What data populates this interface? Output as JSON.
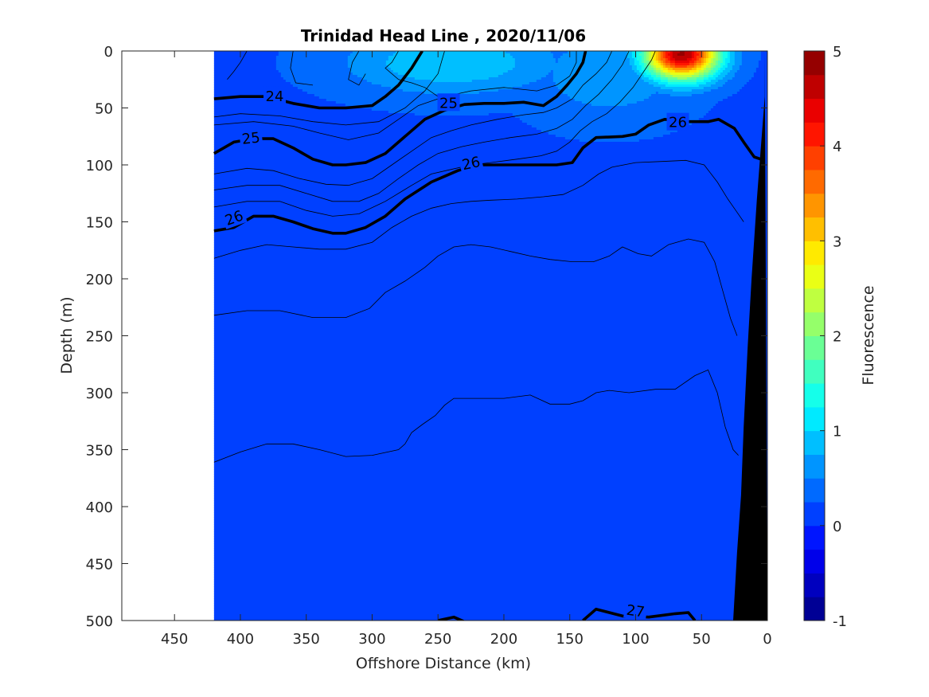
{
  "chart_data": {
    "type": "heatmap",
    "title": "Trinidad Head Line , 2020/11/06",
    "xlabel": "Offshore Distance (km)",
    "ylabel": "Depth (m)",
    "colorbar_label": "Fluorescence",
    "xlim": [
      490,
      0
    ],
    "ylim": [
      500,
      0
    ],
    "x_reversed": true,
    "y_reversed": true,
    "xticks": [
      450,
      400,
      350,
      300,
      250,
      200,
      150,
      100,
      50,
      0
    ],
    "yticks": [
      0,
      50,
      100,
      150,
      200,
      250,
      300,
      350,
      400,
      450,
      500
    ],
    "colorbar_range": [
      -1,
      5
    ],
    "colorbar_ticks": [
      5,
      4,
      3,
      2,
      1,
      0,
      -1
    ],
    "colormap": "jet",
    "colorbar_levels": 24,
    "background_fluorescence": 0.2,
    "data_coverage_x": [
      0,
      420
    ],
    "bathymetry_color": "#000000",
    "fluorescence_features": [
      {
        "x_center": 65,
        "depth_center": 3,
        "x_radius": 28,
        "depth_radius": 22,
        "peak": 4.8
      },
      {
        "x_center": 240,
        "depth_center": 10,
        "x_radius": 80,
        "depth_radius": 28,
        "peak": 1.0
      },
      {
        "x_center": 120,
        "depth_center": 20,
        "x_radius": 60,
        "depth_radius": 40,
        "peak": 0.7
      }
    ],
    "density_contours": [
      {
        "value": 24,
        "labeled": true,
        "points": [
          [
            420,
            42
          ],
          [
            400,
            40
          ],
          [
            380,
            40
          ],
          [
            360,
            46
          ],
          [
            340,
            50
          ],
          [
            320,
            50
          ],
          [
            300,
            48
          ],
          [
            290,
            40
          ],
          [
            280,
            30
          ],
          [
            270,
            15
          ],
          [
            262,
            0
          ]
        ]
      },
      {
        "value": 25,
        "labeled": true,
        "points": [
          [
            420,
            90
          ],
          [
            405,
            80
          ],
          [
            390,
            77
          ],
          [
            375,
            77
          ],
          [
            360,
            85
          ],
          [
            345,
            95
          ],
          [
            330,
            100
          ],
          [
            320,
            100
          ],
          [
            305,
            98
          ],
          [
            290,
            90
          ],
          [
            275,
            75
          ],
          [
            260,
            60
          ],
          [
            245,
            52
          ],
          [
            230,
            47
          ],
          [
            215,
            46
          ],
          [
            200,
            46
          ],
          [
            185,
            45
          ],
          [
            170,
            48
          ],
          [
            160,
            40
          ],
          [
            152,
            30
          ],
          [
            145,
            20
          ],
          [
            140,
            10
          ],
          [
            138,
            0
          ]
        ]
      },
      {
        "value": 26,
        "labeled": true,
        "points": [
          [
            420,
            158
          ],
          [
            405,
            155
          ],
          [
            390,
            145
          ],
          [
            375,
            145
          ],
          [
            360,
            150
          ],
          [
            345,
            156
          ],
          [
            330,
            160
          ],
          [
            320,
            160
          ],
          [
            305,
            155
          ],
          [
            290,
            145
          ],
          [
            275,
            130
          ],
          [
            255,
            115
          ],
          [
            235,
            105
          ],
          [
            220,
            100
          ],
          [
            200,
            100
          ],
          [
            180,
            100
          ],
          [
            160,
            100
          ],
          [
            148,
            98
          ],
          [
            140,
            85
          ],
          [
            130,
            76
          ],
          [
            110,
            75
          ],
          [
            100,
            73
          ],
          [
            90,
            65
          ],
          [
            78,
            60
          ],
          [
            60,
            62
          ],
          [
            45,
            62
          ],
          [
            37,
            60
          ],
          [
            25,
            68
          ],
          [
            18,
            80
          ],
          [
            10,
            93
          ],
          [
            5,
            95
          ]
        ]
      },
      {
        "value": 27,
        "labeled": true,
        "points": [
          [
            250,
            500
          ],
          [
            238,
            497
          ],
          [
            230,
            501
          ]
        ]
      },
      {
        "value": 27,
        "labeled": false,
        "points": [
          [
            140,
            500
          ],
          [
            130,
            490
          ],
          [
            110,
            496
          ],
          [
            90,
            497
          ],
          [
            70,
            494
          ],
          [
            60,
            493
          ],
          [
            55,
            500
          ]
        ]
      }
    ],
    "thin_contours": [
      [
        [
          410,
          25
        ],
        [
          405,
          18
        ],
        [
          400,
          10
        ],
        [
          395,
          0
        ]
      ],
      [
        [
          360,
          0
        ],
        [
          362,
          15
        ],
        [
          358,
          28
        ],
        [
          345,
          30
        ]
      ],
      [
        [
          310,
          0
        ],
        [
          315,
          10
        ],
        [
          318,
          25
        ],
        [
          310,
          30
        ],
        [
          305,
          20
        ]
      ],
      [
        [
          280,
          0
        ],
        [
          285,
          10
        ],
        [
          290,
          15
        ],
        [
          280,
          25
        ],
        [
          270,
          28
        ],
        [
          260,
          32
        ],
        [
          250,
          40
        ],
        [
          240,
          46
        ]
      ],
      [
        [
          420,
          58
        ],
        [
          400,
          55
        ],
        [
          370,
          57
        ],
        [
          345,
          62
        ],
        [
          320,
          65
        ],
        [
          295,
          62
        ],
        [
          275,
          50
        ],
        [
          260,
          35
        ],
        [
          250,
          20
        ],
        [
          245,
          0
        ]
      ],
      [
        [
          420,
          65
        ],
        [
          390,
          62
        ],
        [
          360,
          66
        ],
        [
          340,
          72
        ],
        [
          318,
          78
        ],
        [
          295,
          72
        ],
        [
          280,
          60
        ],
        [
          265,
          48
        ],
        [
          245,
          40
        ],
        [
          225,
          35
        ],
        [
          200,
          32
        ],
        [
          175,
          35
        ],
        [
          160,
          30
        ],
        [
          150,
          22
        ],
        [
          145,
          10
        ],
        [
          145,
          0
        ]
      ],
      [
        [
          420,
          108
        ],
        [
          395,
          103
        ],
        [
          375,
          105
        ],
        [
          355,
          112
        ],
        [
          335,
          117
        ],
        [
          318,
          118
        ],
        [
          300,
          112
        ],
        [
          285,
          100
        ],
        [
          270,
          88
        ],
        [
          255,
          76
        ],
        [
          240,
          70
        ],
        [
          225,
          65
        ],
        [
          205,
          60
        ],
        [
          185,
          56
        ],
        [
          170,
          54
        ],
        [
          160,
          50
        ],
        [
          148,
          42
        ],
        [
          140,
          30
        ],
        [
          130,
          20
        ],
        [
          122,
          10
        ],
        [
          118,
          0
        ]
      ],
      [
        [
          420,
          122
        ],
        [
          395,
          118
        ],
        [
          370,
          118
        ],
        [
          350,
          125
        ],
        [
          330,
          132
        ],
        [
          310,
          132
        ],
        [
          295,
          125
        ],
        [
          280,
          112
        ],
        [
          265,
          100
        ],
        [
          250,
          90
        ],
        [
          232,
          84
        ],
        [
          215,
          80
        ],
        [
          195,
          76
        ],
        [
          175,
          73
        ],
        [
          160,
          68
        ],
        [
          148,
          60
        ],
        [
          138,
          48
        ],
        [
          128,
          38
        ],
        [
          118,
          25
        ],
        [
          110,
          12
        ],
        [
          105,
          0
        ]
      ],
      [
        [
          420,
          137
        ],
        [
          395,
          132
        ],
        [
          370,
          132
        ],
        [
          350,
          140
        ],
        [
          330,
          145
        ],
        [
          310,
          143
        ],
        [
          290,
          132
        ],
        [
          270,
          118
        ],
        [
          255,
          108
        ],
        [
          240,
          104
        ],
        [
          225,
          100
        ],
        [
          210,
          98
        ],
        [
          190,
          95
        ],
        [
          172,
          92
        ],
        [
          160,
          88
        ],
        [
          150,
          80
        ],
        [
          142,
          70
        ],
        [
          133,
          62
        ],
        [
          122,
          55
        ],
        [
          112,
          45
        ],
        [
          102,
          32
        ],
        [
          95,
          20
        ],
        [
          88,
          8
        ],
        [
          85,
          0
        ]
      ],
      [
        [
          420,
          182
        ],
        [
          400,
          175
        ],
        [
          380,
          170
        ],
        [
          360,
          172
        ],
        [
          340,
          174
        ],
        [
          320,
          174
        ],
        [
          300,
          168
        ],
        [
          285,
          155
        ],
        [
          270,
          145
        ],
        [
          255,
          138
        ],
        [
          240,
          134
        ],
        [
          225,
          132
        ],
        [
          210,
          131
        ],
        [
          190,
          130
        ],
        [
          170,
          128
        ],
        [
          155,
          126
        ],
        [
          140,
          118
        ],
        [
          128,
          108
        ],
        [
          118,
          102
        ],
        [
          100,
          98
        ],
        [
          80,
          97
        ],
        [
          62,
          96
        ],
        [
          48,
          100
        ],
        [
          38,
          115
        ],
        [
          30,
          130
        ],
        [
          24,
          140
        ],
        [
          18,
          150
        ]
      ],
      [
        [
          420,
          232
        ],
        [
          395,
          228
        ],
        [
          370,
          228
        ],
        [
          345,
          234
        ],
        [
          320,
          234
        ],
        [
          302,
          226
        ],
        [
          290,
          212
        ],
        [
          275,
          202
        ],
        [
          260,
          190
        ],
        [
          250,
          180
        ],
        [
          238,
          172
        ],
        [
          225,
          170
        ],
        [
          210,
          172
        ],
        [
          195,
          176
        ],
        [
          180,
          180
        ],
        [
          165,
          183
        ],
        [
          148,
          185
        ],
        [
          132,
          185
        ],
        [
          120,
          180
        ],
        [
          110,
          172
        ],
        [
          98,
          178
        ],
        [
          88,
          180
        ],
        [
          75,
          170
        ],
        [
          60,
          165
        ],
        [
          48,
          168
        ],
        [
          40,
          185
        ],
        [
          34,
          210
        ],
        [
          28,
          235
        ],
        [
          23,
          250
        ]
      ],
      [
        [
          420,
          361
        ],
        [
          400,
          352
        ],
        [
          380,
          345
        ],
        [
          360,
          345
        ],
        [
          340,
          350
        ],
        [
          320,
          356
        ],
        [
          300,
          355
        ],
        [
          280,
          350
        ],
        [
          275,
          345
        ],
        [
          270,
          335
        ],
        [
          262,
          328
        ],
        [
          252,
          320
        ],
        [
          245,
          311
        ],
        [
          238,
          305
        ],
        [
          220,
          305
        ],
        [
          200,
          305
        ],
        [
          180,
          302
        ],
        [
          165,
          310
        ],
        [
          150,
          310
        ],
        [
          140,
          307
        ],
        [
          130,
          300
        ],
        [
          120,
          298
        ],
        [
          105,
          300
        ],
        [
          85,
          297
        ],
        [
          70,
          297
        ],
        [
          55,
          285
        ],
        [
          45,
          280
        ],
        [
          38,
          300
        ],
        [
          32,
          330
        ],
        [
          26,
          350
        ],
        [
          22,
          355
        ]
      ]
    ],
    "contour_labels": [
      {
        "text": "24",
        "x": 374,
        "depth": 39,
        "angle": 0
      },
      {
        "text": "25",
        "x": 242,
        "depth": 45,
        "angle": 0
      },
      {
        "text": "25",
        "x": 392,
        "depth": 76,
        "angle": -6
      },
      {
        "text": "26",
        "x": 225,
        "depth": 98,
        "angle": -12
      },
      {
        "text": "26",
        "x": 68,
        "depth": 62,
        "angle": 0
      },
      {
        "text": "26",
        "x": 405,
        "depth": 146,
        "angle": -20
      },
      {
        "text": "27",
        "x": 100,
        "depth": 491,
        "angle": 8
      }
    ]
  }
}
